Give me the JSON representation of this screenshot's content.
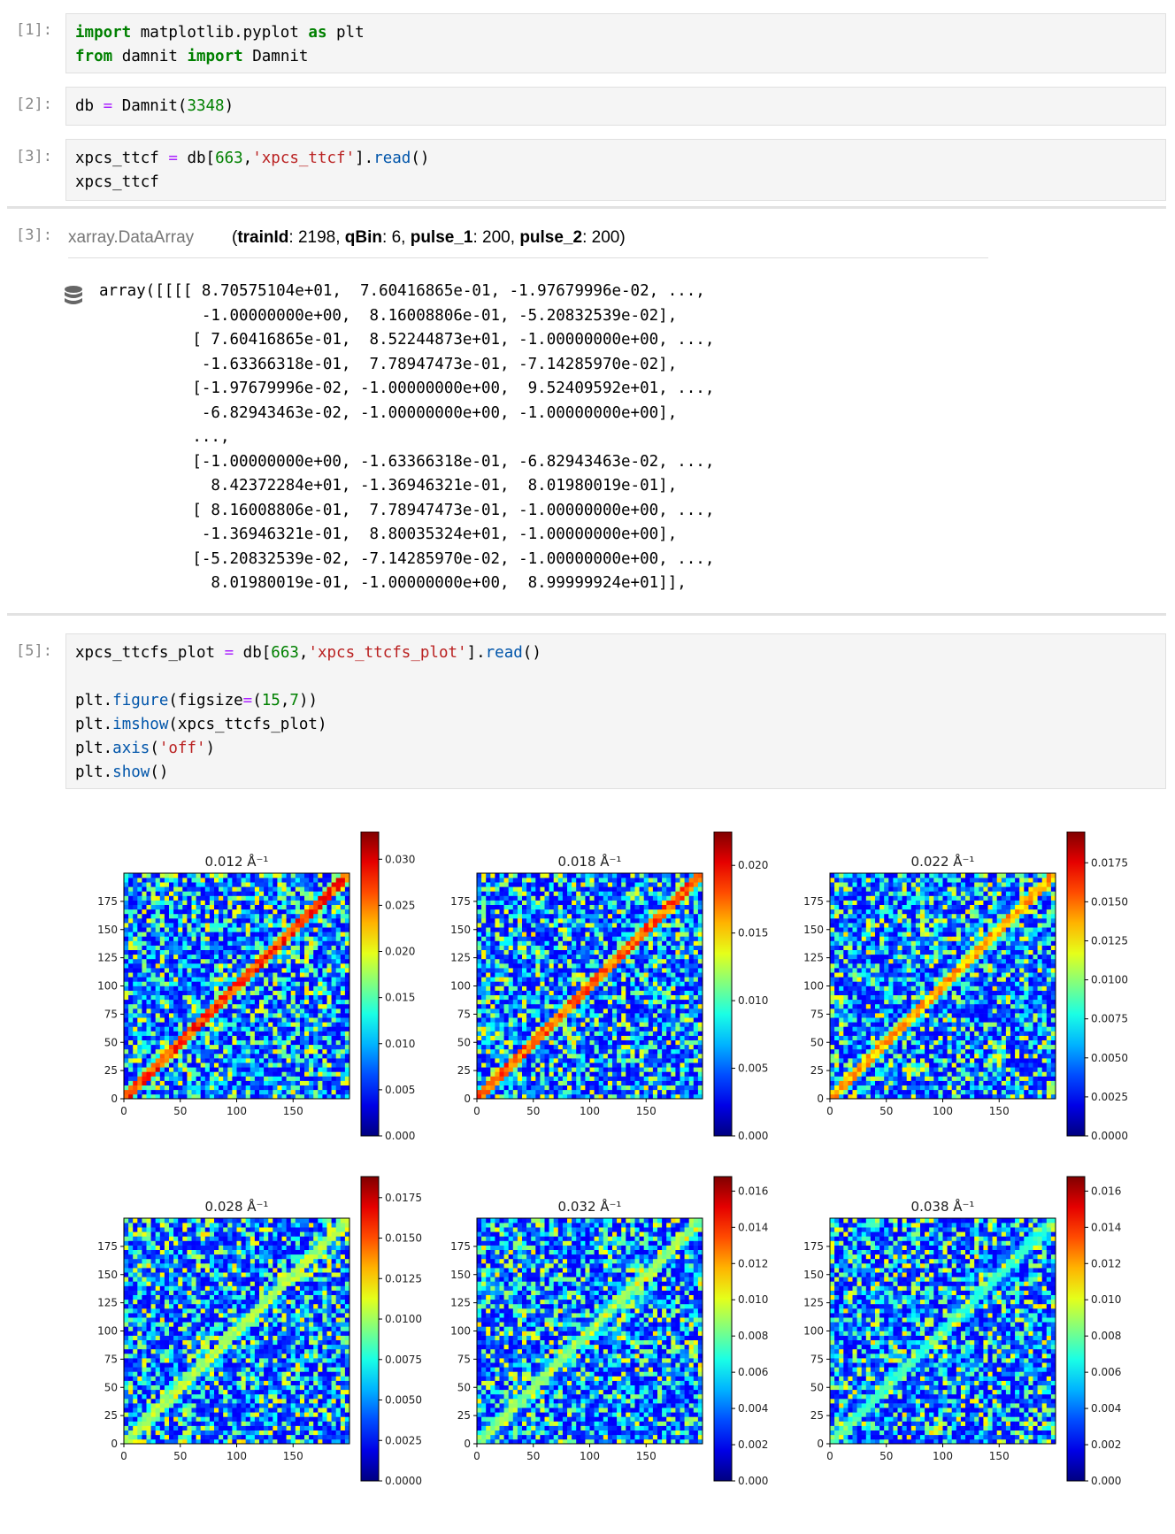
{
  "cells": [
    {
      "prompt": "[1]:",
      "lines": [
        [
          [
            "kw",
            "import"
          ],
          [
            "t",
            " matplotlib.pyplot "
          ],
          [
            "kw",
            "as"
          ],
          [
            "t",
            " plt"
          ]
        ],
        [
          [
            "kw",
            "from"
          ],
          [
            "t",
            " damnit "
          ],
          [
            "kw",
            "import"
          ],
          [
            "t",
            " Damnit"
          ]
        ]
      ]
    },
    {
      "prompt": "[2]:",
      "lines": [
        [
          [
            "t",
            "db "
          ],
          [
            "op",
            "="
          ],
          [
            "t",
            " Damnit("
          ],
          [
            "num",
            "3348"
          ],
          [
            "t",
            ")"
          ]
        ]
      ]
    },
    {
      "prompt": "[3]:",
      "lines": [
        [
          [
            "t",
            "xpcs_ttcf "
          ],
          [
            "op",
            "="
          ],
          [
            "t",
            " db["
          ],
          [
            "num",
            "663"
          ],
          [
            "t",
            ","
          ],
          [
            "str",
            "'xpcs_ttcf'"
          ],
          [
            "t",
            "]."
          ],
          [
            "fn",
            "read"
          ],
          [
            "t",
            "()"
          ]
        ],
        [
          [
            "t",
            "xpcs_ttcf"
          ]
        ]
      ]
    },
    {
      "prompt": "[5]:",
      "lines": [
        [
          [
            "t",
            "xpcs_ttcfs_plot "
          ],
          [
            "op",
            "="
          ],
          [
            "t",
            " db["
          ],
          [
            "num",
            "663"
          ],
          [
            "t",
            ","
          ],
          [
            "str",
            "'xpcs_ttcfs_plot'"
          ],
          [
            "t",
            "]."
          ],
          [
            "fn",
            "read"
          ],
          [
            "t",
            "()"
          ]
        ],
        [
          [
            "t",
            ""
          ]
        ],
        [
          [
            "t",
            "plt."
          ],
          [
            "fn",
            "figure"
          ],
          [
            "t",
            "(figsize"
          ],
          [
            "op",
            "="
          ],
          [
            "t",
            "("
          ],
          [
            "num",
            "15"
          ],
          [
            "t",
            ","
          ],
          [
            "num",
            "7"
          ],
          [
            "t",
            "))"
          ]
        ],
        [
          [
            "t",
            "plt."
          ],
          [
            "fn",
            "imshow"
          ],
          [
            "t",
            "(xpcs_ttcfs_plot)"
          ]
        ],
        [
          [
            "t",
            "plt."
          ],
          [
            "fn",
            "axis"
          ],
          [
            "t",
            "("
          ],
          [
            "str",
            "'off'"
          ],
          [
            "t",
            ")"
          ]
        ],
        [
          [
            "t",
            "plt."
          ],
          [
            "fn",
            "show"
          ],
          [
            "t",
            "()"
          ]
        ]
      ]
    }
  ],
  "output": {
    "prompt": "[3]:",
    "type_label": "xarray.DataArray",
    "dims": [
      {
        "name": "trainId",
        "size": "2198"
      },
      {
        "name": "qBin",
        "size": "6"
      },
      {
        "name": "pulse_1",
        "size": "200"
      },
      {
        "name": "pulse_2",
        "size": "200"
      }
    ],
    "db_icon": "database-icon",
    "array_lines": [
      "array([[[[ 8.70575104e+01,  7.60416865e-01, -1.97679996e-02, ...,",
      "           -1.00000000e+00,  8.16008806e-01, -5.20832539e-02],",
      "          [ 7.60416865e-01,  8.52244873e+01, -1.00000000e+00, ...,",
      "           -1.63366318e-01,  7.78947473e-01, -7.14285970e-02],",
      "          [-1.97679996e-02, -1.00000000e+00,  9.52409592e+01, ...,",
      "           -6.82943463e-02, -1.00000000e+00, -1.00000000e+00],",
      "          ...,",
      "          [-1.00000000e+00, -1.63366318e-01, -6.82943463e-02, ...,",
      "            8.42372284e+01, -1.36946321e-01,  8.01980019e-01],",
      "          [ 8.16008806e-01,  7.78947473e-01, -1.00000000e+00, ...,",
      "           -1.36946321e-01,  8.80035324e+01, -1.00000000e+00],",
      "          [-5.20832539e-02, -7.14285970e-02, -1.00000000e+00, ...,",
      "            8.01980019e-01, -1.00000000e+00,  8.99999924e+01]],"
    ]
  },
  "chart_data": {
    "type": "heatmap",
    "colormap": "jet",
    "panel_titles": [
      "0.012 Å⁻¹",
      "0.018 Å⁻¹",
      "0.022 Å⁻¹",
      "0.028 Å⁻¹",
      "0.032 Å⁻¹",
      "0.038 Å⁻¹"
    ],
    "axis_ticks": [
      0,
      25,
      50,
      75,
      100,
      125,
      150,
      175
    ],
    "x_ticks": [
      0,
      50,
      100,
      150
    ],
    "xlim": [
      0,
      200
    ],
    "ylim": [
      0,
      200
    ],
    "colorbar_ticks": [
      [
        "0.000",
        "0.005",
        "0.010",
        "0.015",
        "0.020",
        "0.025",
        "0.030"
      ],
      [
        "0.000",
        "0.005",
        "0.010",
        "0.015",
        "0.020"
      ],
      [
        "0.0000",
        "0.0025",
        "0.0050",
        "0.0075",
        "0.0100",
        "0.0125",
        "0.0150",
        "0.0175"
      ],
      [
        "0.0000",
        "0.0025",
        "0.0050",
        "0.0075",
        "0.0100",
        "0.0125",
        "0.0150",
        "0.0175"
      ],
      [
        "0.000",
        "0.002",
        "0.004",
        "0.006",
        "0.008",
        "0.010",
        "0.012",
        "0.014",
        "0.016"
      ],
      [
        "0.000",
        "0.002",
        "0.004",
        "0.006",
        "0.008",
        "0.010",
        "0.012",
        "0.014",
        "0.016"
      ]
    ],
    "colorbar_max": [
      0.033,
      0.0225,
      0.0195,
      0.0188,
      0.0168,
      0.0168
    ],
    "diagonal_strength": [
      0.9,
      0.85,
      0.75,
      0.55,
      0.5,
      0.4
    ]
  }
}
